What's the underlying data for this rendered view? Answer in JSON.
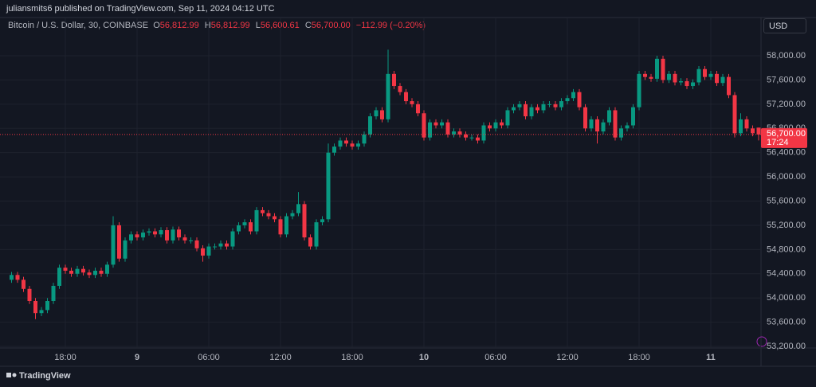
{
  "header": {
    "publisher": "juliansmits6 published on TradingView.com, Sep 11, 2024 04:12 UTC"
  },
  "legend": {
    "symbol": "Bitcoin / U.S. Dollar, 30, COINBASE",
    "o_key": "O",
    "o": "56,812.99",
    "h_key": "H",
    "h": "56,812.99",
    "l_key": "L",
    "l": "56,600.61",
    "c_key": "C",
    "c": "56,700.00",
    "change": "−112.99 (−0.20%)"
  },
  "currency": "USD",
  "footer": {
    "brand": "TradingView"
  },
  "chart_data": {
    "type": "candlestick",
    "up_color": "#089981",
    "down_color": "#f23645",
    "grid": true,
    "categories": [
      null,
      null,
      null,
      null,
      null,
      null,
      null,
      null,
      null,
      "18:00",
      null,
      null,
      null,
      null,
      null,
      null,
      null,
      null,
      null,
      null,
      null,
      "9",
      null,
      null,
      null,
      null,
      null,
      null,
      null,
      null,
      null,
      null,
      null,
      "06:00",
      null,
      null,
      null,
      null,
      null,
      null,
      null,
      null,
      null,
      null,
      null,
      "12:00",
      null,
      null,
      null,
      null,
      null,
      null,
      null,
      null,
      null,
      null,
      null,
      "18:00",
      null,
      null,
      null,
      null,
      null,
      null,
      null,
      null,
      null,
      null,
      null,
      "10",
      null,
      null,
      null,
      null,
      null,
      null,
      null,
      null,
      null,
      null,
      null,
      "06:00",
      null,
      null,
      null,
      null,
      null,
      null,
      null,
      null,
      null,
      null,
      null,
      "12:00",
      null,
      null,
      null,
      null,
      null,
      null,
      null,
      null,
      null,
      null,
      null,
      "18:00",
      null,
      null,
      null,
      null,
      null,
      null,
      null,
      null,
      null,
      null,
      null,
      "11",
      null,
      null,
      null,
      null,
      null,
      null,
      null,
      null
    ],
    "open": [
      54300,
      54380,
      54300,
      54150,
      53950,
      53750,
      53800,
      53950,
      54200,
      54500,
      54450,
      54400,
      54480,
      54420,
      54380,
      54450,
      54400,
      54550,
      55200,
      54650,
      54950,
      55050,
      55000,
      55080,
      55100,
      55050,
      55120,
      54950,
      55130,
      55000,
      54950,
      54950,
      54820,
      54700,
      54850,
      54850,
      54900,
      54850,
      55100,
      55200,
      55250,
      55100,
      55450,
      55400,
      55350,
      55300,
      55050,
      55350,
      55400,
      55550,
      55000,
      54850,
      55250,
      55300,
      56400,
      56500,
      56600,
      56550,
      56500,
      56550,
      56700,
      57000,
      57100,
      56950,
      57700,
      57500,
      57400,
      57250,
      57200,
      57050,
      56650,
      56900,
      56850,
      56900,
      56700,
      56750,
      56700,
      56650,
      56650,
      56600,
      56850,
      56800,
      56900,
      56850,
      57100,
      57150,
      57200,
      57000,
      57150,
      57100,
      57200,
      57200,
      57150,
      57250,
      57300,
      57400,
      57150,
      56800,
      56950,
      56750,
      56900,
      57100,
      56650,
      56800,
      56850,
      57150,
      57700,
      57650,
      57620,
      57950,
      57600,
      57700,
      57560,
      57580,
      57500,
      57560,
      57780,
      57650,
      57700,
      57550,
      57650,
      57350,
      56720,
      56950,
      56800,
      56812.99
    ],
    "high": [
      54430,
      54430,
      54350,
      54200,
      54000,
      53850,
      54000,
      54250,
      54550,
      54550,
      54500,
      54530,
      54530,
      54470,
      54500,
      54500,
      54600,
      55350,
      55250,
      55000,
      55100,
      55100,
      55130,
      55150,
      55150,
      55170,
      55170,
      55180,
      55180,
      55050,
      55000,
      55000,
      54870,
      54900,
      54900,
      54950,
      54950,
      55150,
      55250,
      55300,
      55300,
      55500,
      55500,
      55450,
      55400,
      55350,
      55400,
      55450,
      55750,
      55600,
      55050,
      55300,
      55350,
      56550,
      56550,
      56650,
      56650,
      56600,
      56600,
      56750,
      57050,
      57150,
      57150,
      58100,
      57750,
      57550,
      57450,
      57300,
      57250,
      57100,
      56950,
      56950,
      56950,
      56950,
      56800,
      56800,
      56750,
      56700,
      56700,
      56900,
      56900,
      56950,
      56950,
      57150,
      57200,
      57250,
      57250,
      57200,
      57200,
      57250,
      57250,
      57250,
      57300,
      57350,
      57450,
      57450,
      57200,
      57000,
      57000,
      56950,
      57150,
      57150,
      56850,
      56900,
      57200,
      57750,
      57750,
      57700,
      58000,
      58000,
      57750,
      57750,
      57630,
      57630,
      57610,
      57830,
      57830,
      57750,
      57750,
      57700,
      57700,
      57400,
      57050,
      57000,
      56850,
      56812.99
    ],
    "low": [
      54250,
      54250,
      54100,
      53900,
      53650,
      53700,
      53750,
      53900,
      54150,
      54400,
      54350,
      54350,
      54370,
      54330,
      54330,
      54350,
      54350,
      54500,
      54600,
      54600,
      54900,
      54950,
      54950,
      55030,
      55000,
      55000,
      54900,
      54900,
      54950,
      54900,
      54900,
      54770,
      54600,
      54650,
      54800,
      54800,
      54800,
      54800,
      55050,
      55150,
      55050,
      55050,
      55350,
      55300,
      55250,
      55000,
      55000,
      55300,
      55350,
      54950,
      54800,
      54800,
      55200,
      55250,
      56350,
      56450,
      56500,
      56450,
      56450,
      56500,
      56650,
      56950,
      56900,
      56900,
      57450,
      57350,
      57200,
      57150,
      57000,
      56600,
      56600,
      56800,
      56800,
      56650,
      56650,
      56650,
      56600,
      56600,
      56550,
      56550,
      56750,
      56750,
      56800,
      56800,
      57050,
      57100,
      56950,
      56950,
      57050,
      57050,
      57150,
      57100,
      57100,
      57200,
      57250,
      57100,
      56750,
      56750,
      56550,
      56700,
      56850,
      56600,
      56600,
      56750,
      56800,
      57100,
      57600,
      57570,
      57570,
      57550,
      57550,
      57510,
      57510,
      57450,
      57450,
      57510,
      57600,
      57600,
      57500,
      57500,
      57300,
      56650,
      56670,
      56750,
      56670,
      56600.61
    ],
    "close": [
      54380,
      54300,
      54150,
      53950,
      53750,
      53800,
      53950,
      54200,
      54500,
      54450,
      54400,
      54480,
      54420,
      54380,
      54450,
      54400,
      54550,
      55200,
      54650,
      54950,
      55050,
      55000,
      55080,
      55100,
      55050,
      55120,
      54950,
      55130,
      55000,
      54950,
      54950,
      54820,
      54700,
      54850,
      54850,
      54900,
      54850,
      55100,
      55200,
      55250,
      55100,
      55450,
      55400,
      55350,
      55300,
      55050,
      55350,
      55400,
      55550,
      55000,
      54850,
      55250,
      55300,
      56400,
      56500,
      56600,
      56550,
      56500,
      56550,
      56700,
      57000,
      57100,
      56950,
      57700,
      57500,
      57400,
      57250,
      57200,
      57050,
      56650,
      56900,
      56850,
      56900,
      56700,
      56750,
      56700,
      56650,
      56650,
      56600,
      56850,
      56800,
      56900,
      56850,
      57100,
      57150,
      57200,
      57000,
      57150,
      57100,
      57200,
      57200,
      57150,
      57250,
      57300,
      57400,
      57150,
      56800,
      56950,
      56750,
      56900,
      57100,
      56650,
      56800,
      56850,
      57150,
      57700,
      57650,
      57620,
      57950,
      57600,
      57700,
      57560,
      57580,
      57500,
      57560,
      57780,
      57650,
      57700,
      57550,
      57650,
      57350,
      56720,
      56950,
      56800,
      56720,
      56700
    ],
    "ylim": [
      53174,
      58329
    ],
    "yticks": [
      {
        "value": 53200,
        "label": "53,200.00"
      },
      {
        "value": 53600,
        "label": "53,600.00"
      },
      {
        "value": 54000,
        "label": "54,000.00"
      },
      {
        "value": 54400,
        "label": "54,400.00"
      },
      {
        "value": 54800,
        "label": "54,800.00"
      },
      {
        "value": 55200,
        "label": "55,200.00"
      },
      {
        "value": 55600,
        "label": "55,600.00"
      },
      {
        "value": 56000,
        "label": "56,000.00"
      },
      {
        "value": 56400,
        "label": "56,400.00"
      },
      {
        "value": 56800,
        "label": "56,800.00"
      },
      {
        "value": 57200,
        "label": "57,200.00"
      },
      {
        "value": 57600,
        "label": "57,600.00"
      },
      {
        "value": 58000,
        "label": "58,000.00"
      }
    ],
    "last_price": {
      "value": 56700,
      "label": "56,700.00"
    },
    "countdown": "17:24"
  }
}
